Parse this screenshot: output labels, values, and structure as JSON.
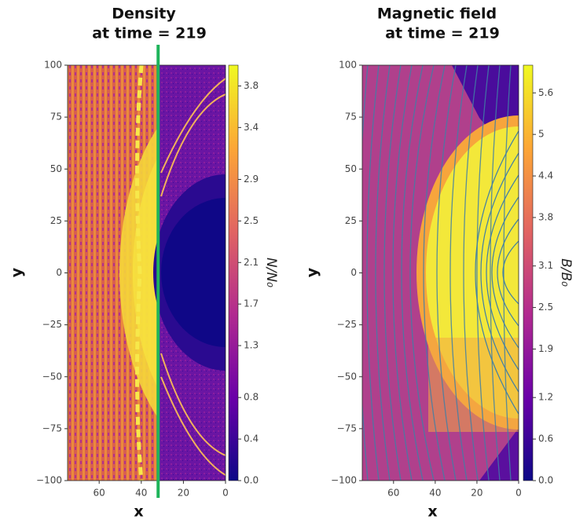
{
  "chart_data": [
    {
      "type": "heatmap",
      "title": [
        "Density",
        "at time = 219"
      ],
      "xlabel": "x",
      "ylabel": "y",
      "xlim": [
        75,
        0
      ],
      "xticks": [
        60,
        40,
        20,
        0
      ],
      "ylim": [
        -100,
        100
      ],
      "yticks": [
        {
          "value": -100,
          "label": "−100"
        },
        {
          "value": -75,
          "label": "−75"
        },
        {
          "value": -50,
          "label": "−50"
        },
        {
          "value": -25,
          "label": "−25"
        },
        0,
        25,
        50,
        75,
        100
      ],
      "vline": {
        "x": 32,
        "color": "#1fb45a"
      },
      "colormap": [
        "#0d0887",
        "#6a00a8",
        "#b12a90",
        "#e16462",
        "#fca636",
        "#f0f921"
      ],
      "colorbar": {
        "label": "N/N₀",
        "lim": [
          0,
          4.0
        ],
        "ticks": [
          {
            "value": 0,
            "label": "0.0"
          },
          0.4,
          0.8,
          1.3,
          1.7,
          2.1,
          2.5,
          2.9,
          3.4,
          3.8
        ]
      }
    },
    {
      "type": "heatmap",
      "title": [
        "Magnetic field",
        "at time = 219"
      ],
      "xlabel": "x",
      "ylabel": "y",
      "xlim": [
        75,
        0
      ],
      "xticks": [
        60,
        40,
        20,
        0
      ],
      "ylim": [
        -100,
        100
      ],
      "yticks": [
        {
          "value": -100,
          "label": "−100"
        },
        {
          "value": -75,
          "label": "−75"
        },
        {
          "value": -50,
          "label": "−50"
        },
        {
          "value": -25,
          "label": "−25"
        },
        0,
        25,
        50,
        75,
        100
      ],
      "colormap": [
        "#0d0887",
        "#6a00a8",
        "#b12a90",
        "#e16462",
        "#fca636",
        "#f0f921"
      ],
      "colorbar": {
        "label": "B/B₀",
        "lim": [
          0,
          6.0
        ],
        "ticks": [
          {
            "value": 0,
            "label": "0.0"
          },
          0.6,
          1.2,
          1.9,
          2.5,
          3.1,
          3.8,
          4.4,
          5.0,
          5.6
        ]
      }
    }
  ]
}
